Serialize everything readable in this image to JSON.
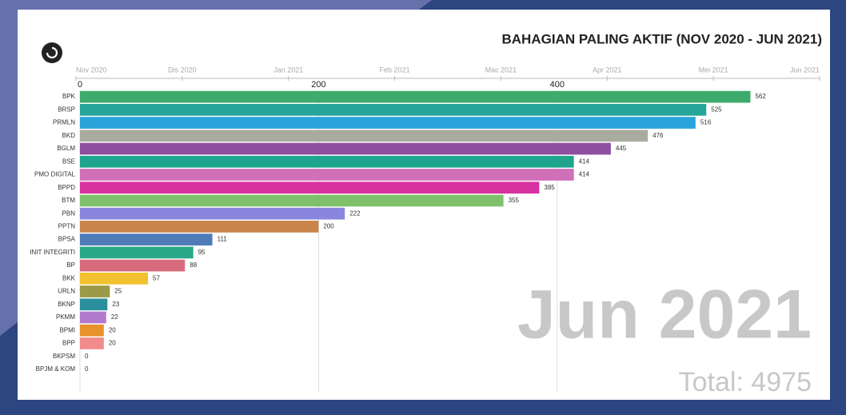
{
  "chart_data": {
    "type": "hbar",
    "title": "BAHAGIAN PALING AKTIF (NOV 2020 - JUN 2021)",
    "timeline": [
      "Nov 2020",
      "Dis 2020",
      "Jan 2021",
      "Feb 2021",
      "Mac 2021",
      "Apr 2021",
      "Mei 2021",
      "Jun 2021"
    ],
    "period_label": "Jun 2021",
    "total_label": "Total: 4975",
    "categories": [
      "BPK",
      "BRSP",
      "PRMLN",
      "BKD",
      "BGLM",
      "BSE",
      "PMO DIGITAL",
      "BPPD",
      "BTM",
      "PBN",
      "PPTN",
      "BPSA",
      "INIT INTEGRITI",
      "BP",
      "BKK",
      "URLN",
      "BKNP",
      "PKMM",
      "BPMI",
      "BPP",
      "BKPSM",
      "BPJM & KOM"
    ],
    "values": [
      562,
      525,
      516,
      476,
      445,
      414,
      414,
      385,
      355,
      222,
      200,
      111,
      95,
      88,
      57,
      25,
      23,
      22,
      20,
      20,
      0,
      0
    ],
    "colors": [
      "#3dab6b",
      "#26a69a",
      "#29a3d9",
      "#a8ab9e",
      "#8e4f9e",
      "#1fa58d",
      "#d070b8",
      "#d632a0",
      "#7fc06a",
      "#8a86de",
      "#c8844a",
      "#4f7cb8",
      "#2aa88a",
      "#d86a7e",
      "#f2c12e",
      "#9a9a48",
      "#2a8f9c",
      "#b27acb",
      "#e8922a",
      "#f28c8c",
      "#cccccc",
      "#cccccc"
    ],
    "xlim": [
      0,
      620
    ],
    "xticks": [
      0,
      200,
      400
    ],
    "grid": true
  }
}
